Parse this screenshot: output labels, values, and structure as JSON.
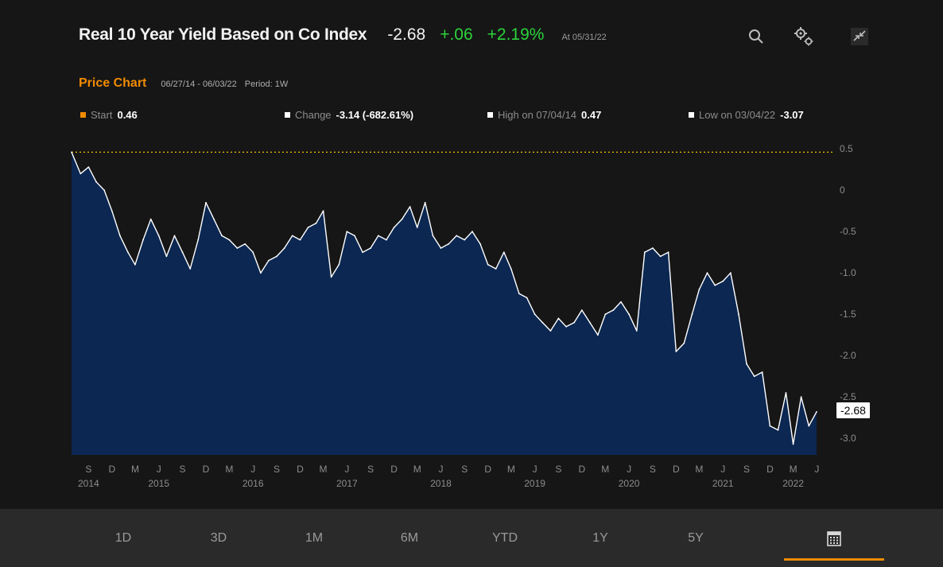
{
  "header": {
    "title": "Real 10 Year Yield Based on Co Index",
    "last": "-2.68",
    "net_change": "+.06",
    "pct_change": "+2.19%",
    "as_of": "At 05/31/22"
  },
  "header_icons": [
    "search-icon",
    "settings-gear-icon",
    "collapse-icon"
  ],
  "subheader": {
    "label": "Price Chart",
    "date_range": "06/27/14 - 06/03/22",
    "period": "Period: 1W"
  },
  "stats": [
    {
      "label": "Start",
      "value": "0.46",
      "color": "#f08b00"
    },
    {
      "label": "Change",
      "value": "-3.14 (-682.61%)",
      "color": "#ffffff"
    },
    {
      "label": "High on 07/04/14",
      "value": "0.47",
      "color": "#ffffff"
    },
    {
      "label": "Low on 03/04/22",
      "value": "-3.07",
      "color": "#ffffff"
    }
  ],
  "last_value_label": "-2.68",
  "colors": {
    "background": "#161616",
    "area_fill": "#0b2752",
    "line": "#ffffff",
    "start_line": "#f0c000",
    "accent": "#f08b00",
    "positive": "#2bd33b"
  },
  "chart_data": {
    "type": "area",
    "title": "Real 10 Year Yield Based on Co Index",
    "ylim": [
      -3.2,
      0.55
    ],
    "yticks": [
      0.5,
      0,
      -0.5,
      -1.0,
      -1.5,
      -2.0,
      -2.5,
      -3.0
    ],
    "ytick_labels": [
      "0.5",
      "0",
      "-0.5",
      "-1.0",
      "-1.5",
      "-2.0",
      "-2.5",
      "-3.0"
    ],
    "xlim": [
      "2014-06-27",
      "2022-06-03"
    ],
    "x_month_ticks": [
      {
        "date": "2014-09-01",
        "label": "S",
        "year": "2014"
      },
      {
        "date": "2014-12-01",
        "label": "D",
        "year": ""
      },
      {
        "date": "2015-03-01",
        "label": "M",
        "year": ""
      },
      {
        "date": "2015-06-01",
        "label": "J",
        "year": "2015"
      },
      {
        "date": "2015-09-01",
        "label": "S",
        "year": ""
      },
      {
        "date": "2015-12-01",
        "label": "D",
        "year": ""
      },
      {
        "date": "2016-03-01",
        "label": "M",
        "year": ""
      },
      {
        "date": "2016-06-01",
        "label": "J",
        "year": "2016"
      },
      {
        "date": "2016-09-01",
        "label": "S",
        "year": ""
      },
      {
        "date": "2016-12-01",
        "label": "D",
        "year": ""
      },
      {
        "date": "2017-03-01",
        "label": "M",
        "year": ""
      },
      {
        "date": "2017-06-01",
        "label": "J",
        "year": "2017"
      },
      {
        "date": "2017-09-01",
        "label": "S",
        "year": ""
      },
      {
        "date": "2017-12-01",
        "label": "D",
        "year": ""
      },
      {
        "date": "2018-03-01",
        "label": "M",
        "year": ""
      },
      {
        "date": "2018-06-01",
        "label": "J",
        "year": "2018"
      },
      {
        "date": "2018-09-01",
        "label": "S",
        "year": ""
      },
      {
        "date": "2018-12-01",
        "label": "D",
        "year": ""
      },
      {
        "date": "2019-03-01",
        "label": "M",
        "year": ""
      },
      {
        "date": "2019-06-01",
        "label": "J",
        "year": "2019"
      },
      {
        "date": "2019-09-01",
        "label": "S",
        "year": ""
      },
      {
        "date": "2019-12-01",
        "label": "D",
        "year": ""
      },
      {
        "date": "2020-03-01",
        "label": "M",
        "year": ""
      },
      {
        "date": "2020-06-01",
        "label": "J",
        "year": "2020"
      },
      {
        "date": "2020-09-01",
        "label": "S",
        "year": ""
      },
      {
        "date": "2020-12-01",
        "label": "D",
        "year": ""
      },
      {
        "date": "2021-03-01",
        "label": "M",
        "year": ""
      },
      {
        "date": "2021-06-01",
        "label": "J",
        "year": "2021"
      },
      {
        "date": "2021-09-01",
        "label": "S",
        "year": ""
      },
      {
        "date": "2021-12-01",
        "label": "D",
        "year": ""
      },
      {
        "date": "2022-03-01",
        "label": "M",
        "year": "2022"
      },
      {
        "date": "2022-06-01",
        "label": "J",
        "year": ""
      }
    ],
    "start_reference": 0.46,
    "grid": false,
    "series": [
      {
        "points": [
          [
            "2014-06-27",
            0.46
          ],
          [
            "2014-08-01",
            0.2
          ],
          [
            "2014-09-01",
            0.28
          ],
          [
            "2014-10-01",
            0.1
          ],
          [
            "2014-11-01",
            0.0
          ],
          [
            "2014-12-01",
            -0.25
          ],
          [
            "2015-01-01",
            -0.55
          ],
          [
            "2015-02-01",
            -0.75
          ],
          [
            "2015-03-01",
            -0.9
          ],
          [
            "2015-04-01",
            -0.6
          ],
          [
            "2015-05-01",
            -0.35
          ],
          [
            "2015-06-01",
            -0.55
          ],
          [
            "2015-07-01",
            -0.8
          ],
          [
            "2015-08-01",
            -0.55
          ],
          [
            "2015-09-01",
            -0.75
          ],
          [
            "2015-10-01",
            -0.95
          ],
          [
            "2015-11-01",
            -0.6
          ],
          [
            "2015-12-01",
            -0.15
          ],
          [
            "2016-01-01",
            -0.35
          ],
          [
            "2016-02-01",
            -0.55
          ],
          [
            "2016-03-01",
            -0.6
          ],
          [
            "2016-04-01",
            -0.7
          ],
          [
            "2016-05-01",
            -0.65
          ],
          [
            "2016-06-01",
            -0.75
          ],
          [
            "2016-07-01",
            -1.0
          ],
          [
            "2016-08-01",
            -0.85
          ],
          [
            "2016-09-01",
            -0.8
          ],
          [
            "2016-10-01",
            -0.7
          ],
          [
            "2016-11-01",
            -0.55
          ],
          [
            "2016-12-01",
            -0.6
          ],
          [
            "2017-01-01",
            -0.45
          ],
          [
            "2017-02-01",
            -0.4
          ],
          [
            "2017-03-01",
            -0.25
          ],
          [
            "2017-04-01",
            -1.05
          ],
          [
            "2017-05-01",
            -0.9
          ],
          [
            "2017-06-01",
            -0.5
          ],
          [
            "2017-07-01",
            -0.55
          ],
          [
            "2017-08-01",
            -0.75
          ],
          [
            "2017-09-01",
            -0.7
          ],
          [
            "2017-10-01",
            -0.55
          ],
          [
            "2017-11-01",
            -0.6
          ],
          [
            "2017-12-01",
            -0.45
          ],
          [
            "2018-01-01",
            -0.35
          ],
          [
            "2018-02-01",
            -0.2
          ],
          [
            "2018-03-01",
            -0.45
          ],
          [
            "2018-04-01",
            -0.15
          ],
          [
            "2018-05-01",
            -0.55
          ],
          [
            "2018-06-01",
            -0.7
          ],
          [
            "2018-07-01",
            -0.65
          ],
          [
            "2018-08-01",
            -0.55
          ],
          [
            "2018-09-01",
            -0.6
          ],
          [
            "2018-10-01",
            -0.5
          ],
          [
            "2018-11-01",
            -0.65
          ],
          [
            "2018-12-01",
            -0.9
          ],
          [
            "2019-01-01",
            -0.95
          ],
          [
            "2019-02-01",
            -0.75
          ],
          [
            "2019-03-01",
            -0.95
          ],
          [
            "2019-04-01",
            -1.25
          ],
          [
            "2019-05-01",
            -1.3
          ],
          [
            "2019-06-01",
            -1.5
          ],
          [
            "2019-07-01",
            -1.6
          ],
          [
            "2019-08-01",
            -1.7
          ],
          [
            "2019-09-01",
            -1.55
          ],
          [
            "2019-10-01",
            -1.65
          ],
          [
            "2019-11-01",
            -1.6
          ],
          [
            "2019-12-01",
            -1.45
          ],
          [
            "2020-01-01",
            -1.6
          ],
          [
            "2020-02-01",
            -1.75
          ],
          [
            "2020-03-01",
            -1.5
          ],
          [
            "2020-04-01",
            -1.45
          ],
          [
            "2020-05-01",
            -1.35
          ],
          [
            "2020-06-01",
            -1.5
          ],
          [
            "2020-07-01",
            -1.7
          ],
          [
            "2020-08-01",
            -0.75
          ],
          [
            "2020-09-01",
            -0.7
          ],
          [
            "2020-10-01",
            -0.8
          ],
          [
            "2020-11-01",
            -0.75
          ],
          [
            "2020-12-01",
            -1.95
          ],
          [
            "2021-01-01",
            -1.85
          ],
          [
            "2021-02-01",
            -1.5
          ],
          [
            "2021-03-01",
            -1.2
          ],
          [
            "2021-04-01",
            -1.0
          ],
          [
            "2021-05-01",
            -1.15
          ],
          [
            "2021-06-01",
            -1.1
          ],
          [
            "2021-07-01",
            -1.0
          ],
          [
            "2021-08-01",
            -1.5
          ],
          [
            "2021-09-01",
            -2.1
          ],
          [
            "2021-10-01",
            -2.25
          ],
          [
            "2021-11-01",
            -2.2
          ],
          [
            "2021-12-01",
            -2.85
          ],
          [
            "2022-01-01",
            -2.9
          ],
          [
            "2022-02-01",
            -2.45
          ],
          [
            "2022-03-01",
            -3.07
          ],
          [
            "2022-04-01",
            -2.5
          ],
          [
            "2022-05-01",
            -2.85
          ],
          [
            "2022-05-31",
            -2.68
          ]
        ]
      }
    ]
  },
  "range_buttons": [
    {
      "label": "1D"
    },
    {
      "label": "3D"
    },
    {
      "label": "1M"
    },
    {
      "label": "6M"
    },
    {
      "label": "YTD"
    },
    {
      "label": "1Y"
    },
    {
      "label": "5Y"
    },
    {
      "label": "",
      "icon": "calendar-icon",
      "active": true
    }
  ]
}
